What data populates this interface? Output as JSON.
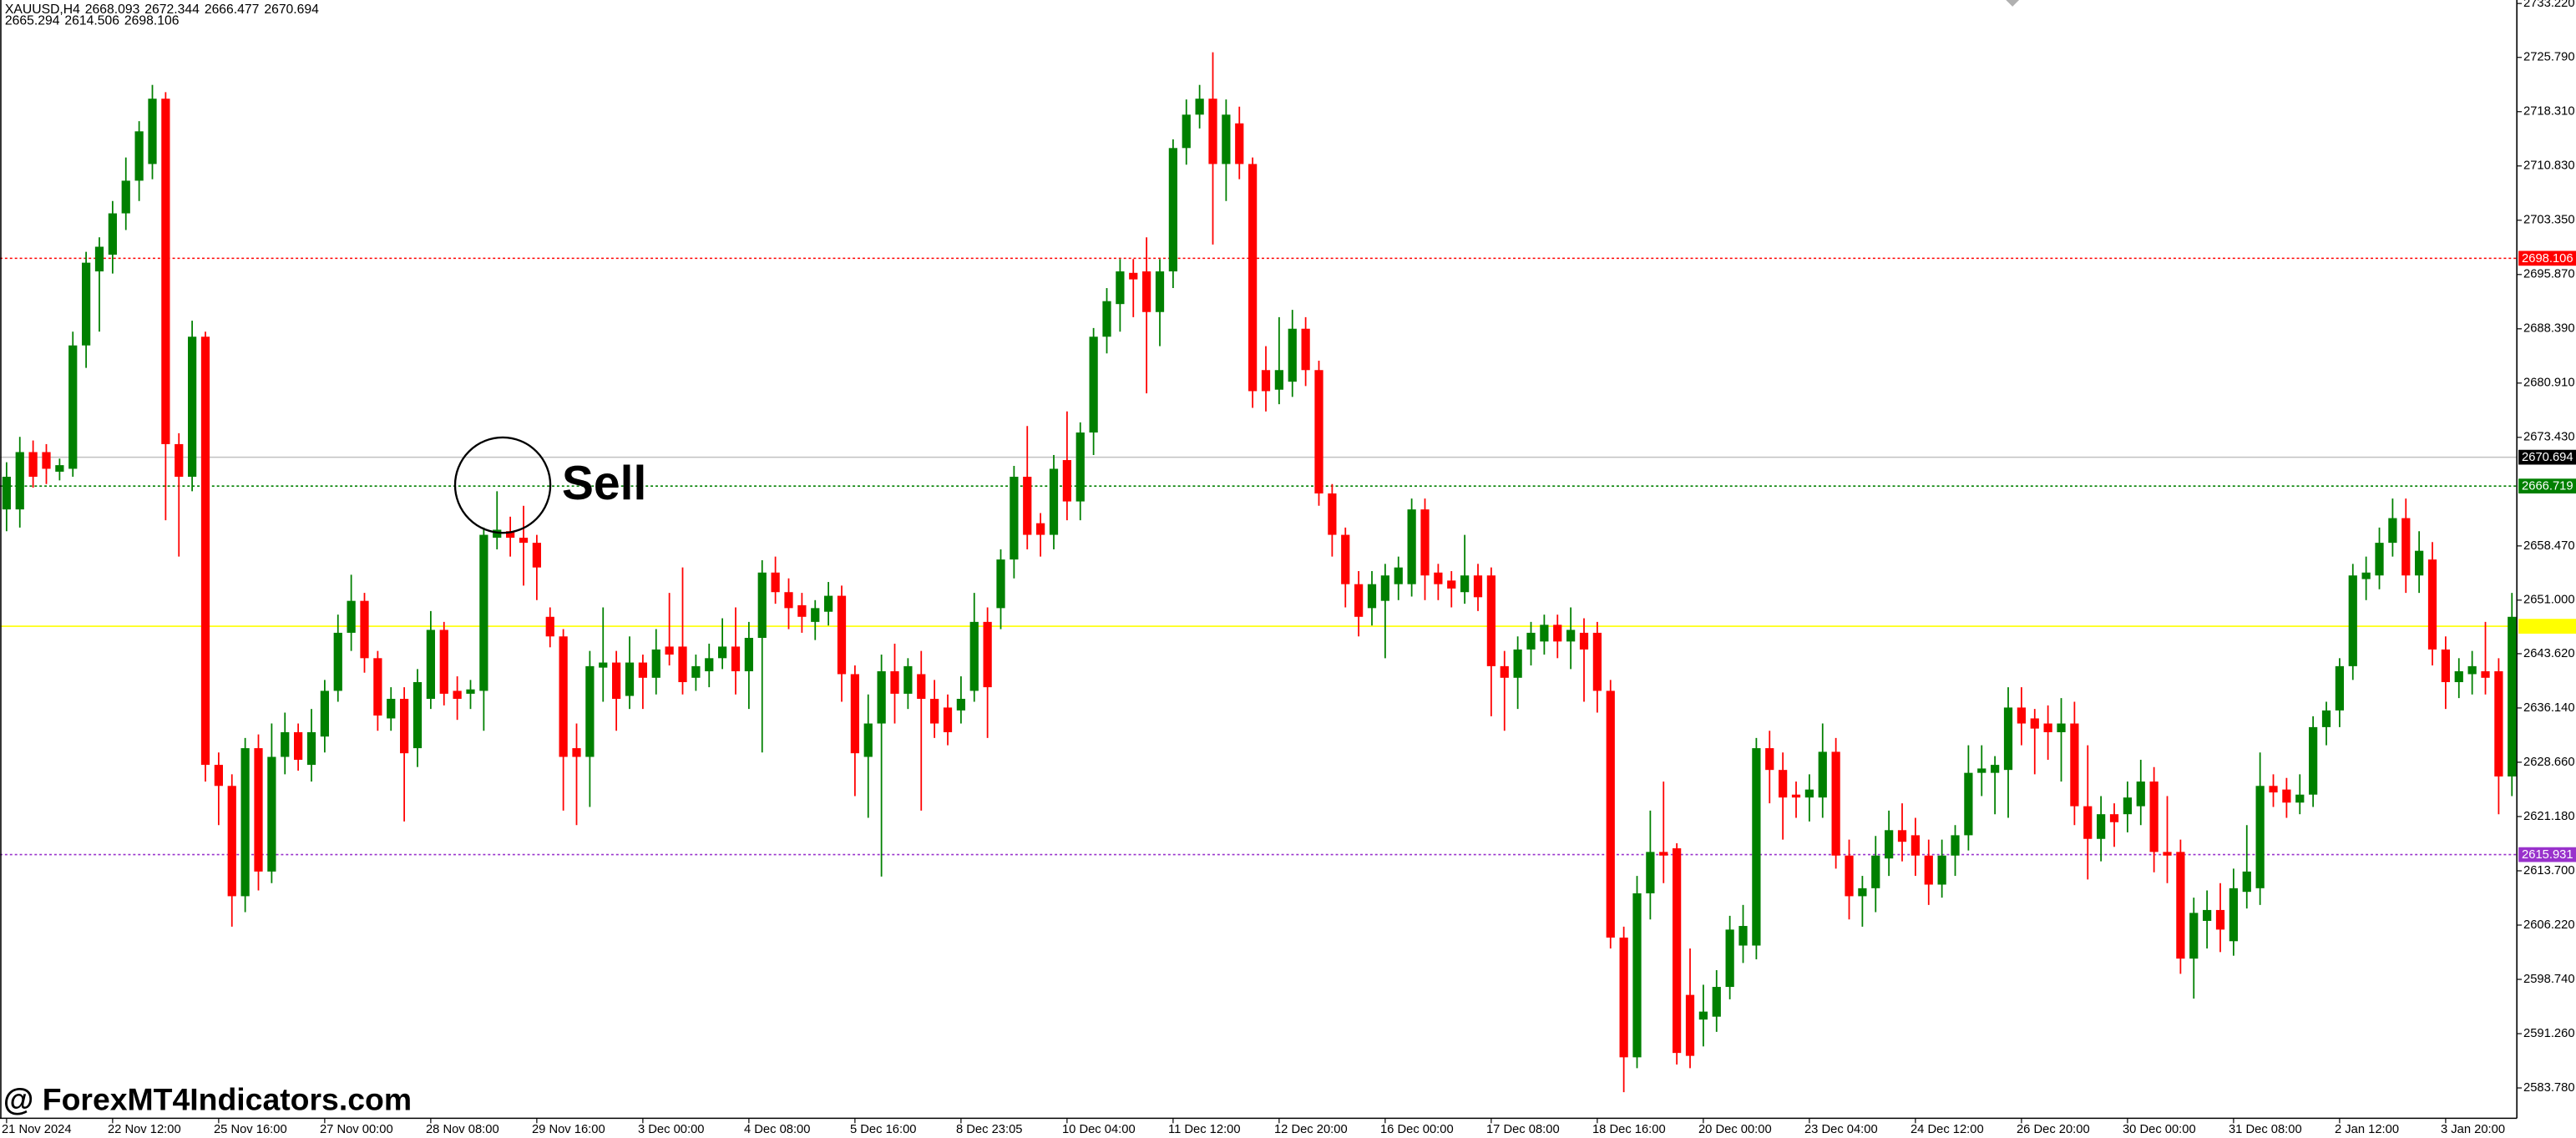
{
  "chart_data": {
    "type": "candlestick",
    "header": {
      "symbol": "XAUUSD,H4",
      "line1": [
        2668.093,
        2672.344,
        2666.477,
        2670.694
      ],
      "line2": [
        2665.294,
        2614.506,
        2698.106
      ]
    },
    "annotation": "Sell",
    "watermark": "@ ForexMT4Indicators.com",
    "up_color": "#008000",
    "down_color": "#ff0000",
    "ylim": [
      2579.6,
      2733.7
    ],
    "yticks": [
      {
        "value": 2733.22,
        "label": "2733.220"
      },
      {
        "value": 2725.79,
        "label": "2725.790"
      },
      {
        "value": 2718.31,
        "label": "2718.310"
      },
      {
        "value": 2710.83,
        "label": "2710.830"
      },
      {
        "value": 2703.35,
        "label": "2703.350"
      },
      {
        "value": 2695.87,
        "label": "2695.870"
      },
      {
        "value": 2688.39,
        "label": "2688.390"
      },
      {
        "value": 2680.91,
        "label": "2680.910"
      },
      {
        "value": 2673.43,
        "label": "2673.430"
      },
      {
        "value": 2658.47,
        "label": "2658.470"
      },
      {
        "value": 2651.0,
        "label": "2651.000"
      },
      {
        "value": 2643.62,
        "label": "2643.620"
      },
      {
        "value": 2636.14,
        "label": "2636.140"
      },
      {
        "value": 2628.66,
        "label": "2628.660"
      },
      {
        "value": 2621.18,
        "label": "2621.180"
      },
      {
        "value": 2613.7,
        "label": "2613.700"
      },
      {
        "value": 2606.22,
        "label": "2606.220"
      },
      {
        "value": 2598.74,
        "label": "2598.740"
      },
      {
        "value": 2591.26,
        "label": "2591.260"
      },
      {
        "value": 2583.78,
        "label": "2583.780"
      }
    ],
    "levels": [
      {
        "value": 2698.106,
        "color": "#ff0000",
        "style": "dotted"
      },
      {
        "value": 2670.694,
        "color": "#000000",
        "line_color": "#c0c0c0",
        "style": "solid"
      },
      {
        "value": 2666.719,
        "color": "#008000",
        "style": "dotted"
      },
      {
        "value": 2647.4,
        "color": "#ffff00",
        "style": "solid"
      },
      {
        "value": 2615.931,
        "color": "#9932cc",
        "style": "dotted"
      }
    ],
    "categories": [
      "21 Nov 2024",
      null,
      null,
      null,
      null,
      null,
      null,
      null,
      "22 Nov 12:00",
      null,
      null,
      null,
      null,
      null,
      null,
      null,
      "25 Nov 16:00",
      null,
      null,
      null,
      null,
      null,
      null,
      null,
      "27 Nov 00:00",
      null,
      null,
      null,
      null,
      null,
      null,
      null,
      "28 Nov 08:00",
      null,
      null,
      null,
      null,
      null,
      null,
      null,
      "29 Nov 16:00",
      null,
      null,
      null,
      null,
      null,
      null,
      null,
      "3 Dec 00:00",
      null,
      null,
      null,
      null,
      null,
      null,
      null,
      "4 Dec 08:00",
      null,
      null,
      null,
      null,
      null,
      null,
      null,
      "5 Dec 16:00",
      null,
      null,
      null,
      null,
      null,
      null,
      null,
      "8 Dec 23:05",
      null,
      null,
      null,
      null,
      null,
      null,
      null,
      "10 Dec 04:00",
      null,
      null,
      null,
      null,
      null,
      null,
      null,
      "11 Dec 12:00",
      null,
      null,
      null,
      null,
      null,
      null,
      null,
      "12 Dec 20:00",
      null,
      null,
      null,
      null,
      null,
      null,
      null,
      "16 Dec 00:00",
      null,
      null,
      null,
      null,
      null,
      null,
      null,
      "17 Dec 08:00",
      null,
      null,
      null,
      null,
      null,
      null,
      null,
      "18 Dec 16:00",
      null,
      null,
      null,
      null,
      null,
      null,
      null,
      "20 Dec 00:00",
      null,
      null,
      null,
      null,
      null,
      null,
      null,
      "23 Dec 04:00",
      null,
      null,
      null,
      null,
      null,
      null,
      null,
      "24 Dec 12:00",
      null,
      null,
      null,
      null,
      null,
      null,
      null,
      "26 Dec 20:00",
      null,
      null,
      null,
      null,
      null,
      null,
      null,
      "30 Dec 00:00",
      null,
      null,
      null,
      null,
      null,
      null,
      null,
      "31 Dec 08:00",
      null,
      null,
      null,
      null,
      null,
      null,
      null,
      "2 Jan 12:00",
      null,
      null,
      null,
      null,
      null,
      null,
      null,
      "3 Jan 20:00",
      null,
      null,
      null,
      null,
      null
    ],
    "open": [
      2663.5,
      2663.5,
      2671.4,
      2671.4,
      2668.7,
      2669.1,
      2686.1,
      2696.3,
      2698.6,
      2704.3,
      2708.8,
      2711.1,
      2720.1,
      2672.5,
      2668.0,
      2687.3,
      2628.3,
      2625.4,
      2610.2,
      2630.6,
      2613.6,
      2629.4,
      2632.8,
      2628.3,
      2632.2,
      2638.5,
      2646.5,
      2650.9,
      2643.0,
      2634.7,
      2637.4,
      2630.6,
      2637.4,
      2646.9,
      2638.5,
      2638.1,
      2638.5,
      2659.6,
      2660.5,
      2659.6,
      2658.9,
      2648.7,
      2646.0,
      2630.6,
      2629.4,
      2641.7,
      2642.4,
      2637.8,
      2642.4,
      2640.3,
      2644.6,
      2644.6,
      2640.3,
      2641.2,
      2643.0,
      2644.6,
      2641.2,
      2645.8,
      2654.8,
      2652.1,
      2650.3,
      2648.0,
      2649.4,
      2651.6,
      2640.8,
      2629.4,
      2634.0,
      2641.2,
      2638.1,
      2640.8,
      2637.4,
      2636.2,
      2635.8,
      2638.5,
      2648.0,
      2649.9,
      2656.6,
      2668.0,
      2661.6,
      2660.0,
      2670.3,
      2664.6,
      2674.1,
      2687.3,
      2691.8,
      2696.1,
      2696.3,
      2690.7,
      2696.3,
      2713.3,
      2717.9,
      2720.1,
      2711.1,
      2716.7,
      2711.1,
      2682.7,
      2680.0,
      2681.1,
      2688.4,
      2682.7,
      2665.7,
      2660.0,
      2653.2,
      2649.9,
      2650.9,
      2653.2,
      2653.2,
      2663.5,
      2654.8,
      2653.7,
      2652.1,
      2654.4,
      2654.4,
      2641.9,
      2640.3,
      2644.2,
      2645.3,
      2647.6,
      2645.3,
      2646.5,
      2646.5,
      2638.5,
      2604.5,
      2588.0,
      2610.6,
      2616.3,
      2616.8,
      2596.6,
      2593.2,
      2593.6,
      2597.7,
      2603.4,
      2603.4,
      2630.6,
      2627.6,
      2624.2,
      2623.8,
      2623.8,
      2630.1,
      2615.8,
      2610.2,
      2611.3,
      2615.4,
      2619.3,
      2618.6,
      2615.8,
      2611.8,
      2615.8,
      2618.6,
      2627.2,
      2627.2,
      2627.6,
      2636.2,
      2634.7,
      2634.0,
      2632.8,
      2634.0,
      2622.6,
      2618.1,
      2621.5,
      2621.5,
      2622.6,
      2626.0,
      2616.3,
      2616.3,
      2601.6,
      2606.8,
      2608.3,
      2604.0,
      2610.8,
      2611.3,
      2625.4,
      2624.9,
      2623.1,
      2624.2,
      2633.5,
      2635.8,
      2641.9,
      2653.9,
      2654.4,
      2658.9,
      2662.3,
      2654.4,
      2656.6,
      2644.2,
      2639.7,
      2640.8,
      2641.2,
      2641.2,
      2626.7
    ],
    "high": [
      2670.0,
      2673.5,
      2673.0,
      2672.5,
      2670.5,
      2688.0,
      2699.0,
      2701.0,
      2706.0,
      2712.0,
      2717.0,
      2722.0,
      2721.0,
      2674.0,
      2689.5,
      2688.0,
      2630.0,
      2627.0,
      2632.0,
      2632.5,
      2634.0,
      2635.5,
      2634.0,
      2636.0,
      2640.0,
      2649.0,
      2654.5,
      2652.0,
      2644.0,
      2639.0,
      2639.0,
      2641.5,
      2649.5,
      2648.0,
      2640.5,
      2640.0,
      2661.0,
      2666.0,
      2662.5,
      2664.0,
      2660.0,
      2650.0,
      2647.0,
      2634.0,
      2644.0,
      2650.0,
      2644.0,
      2646.0,
      2643.5,
      2647.0,
      2652.0,
      2655.5,
      2643.5,
      2645.0,
      2648.5,
      2650.0,
      2648.0,
      2656.5,
      2657.0,
      2654.0,
      2652.0,
      2651.0,
      2653.5,
      2653.0,
      2642.0,
      2638.0,
      2643.5,
      2645.0,
      2643.0,
      2644.0,
      2640.0,
      2638.0,
      2640.5,
      2652.0,
      2650.0,
      2658.0,
      2669.5,
      2675.0,
      2663.0,
      2671.0,
      2677.0,
      2675.5,
      2688.5,
      2694.0,
      2698.0,
      2698.0,
      2701.0,
      2698.0,
      2714.5,
      2720.0,
      2722.0,
      2726.5,
      2720.0,
      2719.0,
      2712.0,
      2686.0,
      2690.0,
      2691.0,
      2690.0,
      2684.0,
      2667.0,
      2661.0,
      2655.0,
      2655.0,
      2656.0,
      2657.0,
      2665.0,
      2665.0,
      2656.0,
      2655.0,
      2660.0,
      2656.0,
      2655.5,
      2644.0,
      2646.0,
      2648.0,
      2649.0,
      2649.0,
      2650.0,
      2648.5,
      2648.0,
      2640.0,
      2606.0,
      2613.0,
      2622.0,
      2626.0,
      2617.5,
      2603.0,
      2598.0,
      2600.0,
      2607.5,
      2609.0,
      2632.0,
      2633.0,
      2630.0,
      2626.0,
      2627.0,
      2634.0,
      2632.0,
      2618.0,
      2613.0,
      2618.5,
      2622.0,
      2623.0,
      2621.0,
      2618.0,
      2618.0,
      2620.0,
      2631.0,
      2631.0,
      2629.5,
      2639.0,
      2639.0,
      2636.0,
      2636.5,
      2637.5,
      2637.0,
      2631.0,
      2624.0,
      2623.0,
      2626.0,
      2629.0,
      2628.0,
      2624.0,
      2618.0,
      2610.0,
      2611.0,
      2612.0,
      2614.0,
      2620.0,
      2630.0,
      2627.0,
      2626.5,
      2627.0,
      2635.0,
      2637.0,
      2643.0,
      2656.0,
      2657.0,
      2661.0,
      2665.0,
      2665.0,
      2660.5,
      2659.0,
      2646.0,
      2643.0,
      2644.0,
      2648.0,
      2643.0,
      2652.0
    ],
    "low": [
      2660.5,
      2661.0,
      2666.5,
      2667.0,
      2667.5,
      2668.0,
      2683.0,
      2688.0,
      2696.0,
      2702.0,
      2706.0,
      2709.0,
      2662.0,
      2657.0,
      2666.0,
      2626.0,
      2620.0,
      2606.0,
      2608.0,
      2611.0,
      2612.0,
      2627.0,
      2627.5,
      2626.0,
      2630.0,
      2637.0,
      2644.0,
      2641.0,
      2633.0,
      2633.0,
      2620.5,
      2628.0,
      2636.0,
      2636.5,
      2634.5,
      2636.0,
      2633.0,
      2658.0,
      2657.0,
      2653.0,
      2651.0,
      2644.5,
      2622.0,
      2620.0,
      2622.5,
      2637.0,
      2633.0,
      2636.0,
      2636.0,
      2638.0,
      2642.0,
      2638.0,
      2638.5,
      2639.0,
      2641.5,
      2638.0,
      2636.0,
      2630.0,
      2650.5,
      2647.0,
      2646.5,
      2645.5,
      2647.5,
      2637.0,
      2624.0,
      2621.0,
      2612.9,
      2634.0,
      2636.0,
      2622.0,
      2632.0,
      2631.0,
      2634.0,
      2637.0,
      2632.0,
      2647.0,
      2654.0,
      2658.0,
      2657.0,
      2658.0,
      2662.0,
      2662.0,
      2671.0,
      2685.0,
      2688.0,
      2690.0,
      2679.5,
      2686.0,
      2694.0,
      2711.0,
      2716.0,
      2700.0,
      2706.0,
      2709.0,
      2677.5,
      2677.0,
      2678.0,
      2679.0,
      2680.5,
      2664.0,
      2657.0,
      2650.0,
      2646.0,
      2647.5,
      2643.0,
      2651.0,
      2651.5,
      2651.0,
      2651.0,
      2650.0,
      2650.5,
      2649.5,
      2635.0,
      2633.0,
      2636.0,
      2642.0,
      2643.5,
      2643.0,
      2641.5,
      2637.0,
      2635.5,
      2603.0,
      2583.2,
      2586.5,
      2607.0,
      2612.0,
      2587.0,
      2586.5,
      2589.5,
      2591.5,
      2596.0,
      2601.0,
      2601.5,
      2623.0,
      2618.0,
      2621.0,
      2620.5,
      2621.0,
      2614.0,
      2607.0,
      2606.0,
      2608.0,
      2613.0,
      2615.0,
      2613.0,
      2609.0,
      2610.0,
      2613.0,
      2616.5,
      2624.0,
      2621.5,
      2621.0,
      2631.0,
      2627.0,
      2629.0,
      2626.0,
      2620.0,
      2612.5,
      2615.0,
      2617.0,
      2619.0,
      2620.0,
      2613.5,
      2612.0,
      2599.5,
      2596.1,
      2603.0,
      2602.5,
      2602.0,
      2608.5,
      2609.0,
      2622.5,
      2621.0,
      2621.5,
      2622.5,
      2631.0,
      2633.5,
      2640.0,
      2651.0,
      2652.5,
      2657.0,
      2652.0,
      2652.0,
      2642.0,
      2636.0,
      2637.5,
      2638.0,
      2638.0,
      2621.5,
      2624.0
    ],
    "close": [
      2668.0,
      2671.4,
      2668.0,
      2669.1,
      2669.6,
      2686.1,
      2697.5,
      2699.7,
      2704.3,
      2708.8,
      2715.6,
      2720.1,
      2672.5,
      2668.0,
      2687.3,
      2628.3,
      2625.4,
      2610.2,
      2630.6,
      2613.6,
      2629.4,
      2632.8,
      2629.0,
      2632.8,
      2638.5,
      2646.5,
      2650.9,
      2643.0,
      2635.1,
      2637.4,
      2629.9,
      2639.7,
      2646.9,
      2638.1,
      2637.4,
      2638.7,
      2660.0,
      2660.7,
      2659.6,
      2658.9,
      2655.5,
      2646.0,
      2629.4,
      2629.4,
      2641.9,
      2642.4,
      2637.4,
      2642.4,
      2640.3,
      2644.2,
      2643.5,
      2639.7,
      2641.9,
      2643.0,
      2644.6,
      2641.2,
      2645.8,
      2654.8,
      2652.1,
      2649.9,
      2648.7,
      2649.9,
      2651.6,
      2640.8,
      2629.9,
      2634.0,
      2641.2,
      2638.1,
      2641.9,
      2637.4,
      2634.0,
      2632.8,
      2637.4,
      2648.0,
      2639.0,
      2656.6,
      2668.0,
      2660.0,
      2660.0,
      2669.1,
      2664.6,
      2674.1,
      2687.3,
      2692.2,
      2696.3,
      2695.2,
      2690.7,
      2696.3,
      2713.3,
      2717.9,
      2720.1,
      2711.1,
      2717.9,
      2711.1,
      2679.8,
      2679.8,
      2682.7,
      2688.4,
      2682.7,
      2665.7,
      2660.0,
      2653.2,
      2648.7,
      2653.2,
      2654.4,
      2655.5,
      2663.5,
      2654.4,
      2653.2,
      2652.6,
      2654.4,
      2651.4,
      2641.9,
      2640.3,
      2644.2,
      2646.5,
      2647.6,
      2645.3,
      2646.9,
      2644.2,
      2638.5,
      2604.5,
      2588.0,
      2610.6,
      2616.3,
      2615.8,
      2588.6,
      2588.2,
      2594.3,
      2597.7,
      2605.6,
      2606.1,
      2630.6,
      2627.6,
      2623.8,
      2623.8,
      2624.9,
      2630.1,
      2615.8,
      2610.2,
      2611.3,
      2615.8,
      2619.3,
      2617.7,
      2615.8,
      2611.8,
      2615.8,
      2618.6,
      2627.2,
      2627.8,
      2628.3,
      2636.2,
      2634.0,
      2633.3,
      2632.8,
      2634.0,
      2622.6,
      2618.1,
      2621.5,
      2620.4,
      2623.8,
      2626.0,
      2616.3,
      2615.8,
      2601.6,
      2607.9,
      2608.3,
      2605.6,
      2611.3,
      2613.6,
      2625.4,
      2624.5,
      2623.1,
      2624.2,
      2633.5,
      2635.8,
      2641.9,
      2654.4,
      2654.8,
      2658.9,
      2662.3,
      2654.4,
      2657.8,
      2644.2,
      2639.7,
      2641.2,
      2641.9,
      2640.3,
      2626.7,
      2648.7
    ]
  }
}
